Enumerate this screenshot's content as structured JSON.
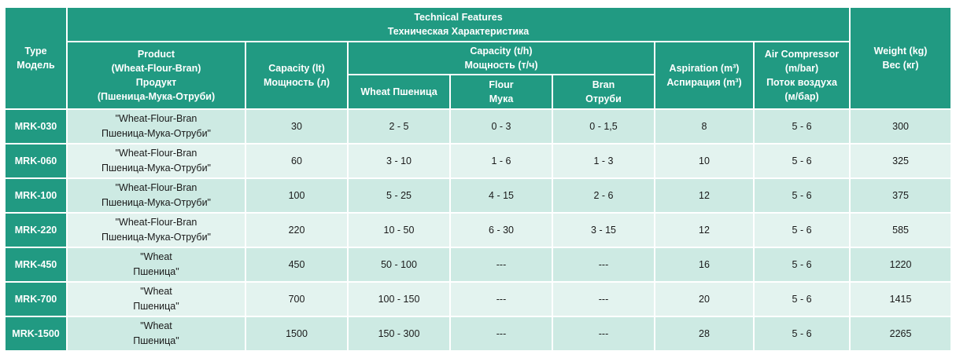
{
  "table": {
    "header": {
      "type": [
        "Type",
        "Модель"
      ],
      "technical_features": [
        "Technical Features",
        "Техническая Характеристика"
      ],
      "product": [
        "Product",
        "(Wheat-Flour-Bran)",
        "Продукт",
        "(Пшеница-Мука-Отруби)"
      ],
      "capacity_lt": [
        "Capacity (lt)",
        "Мощность (л)"
      ],
      "capacity_th": [
        "Capacity (t/h)",
        "Мощность (т/ч)"
      ],
      "wheat": [
        "Wheat Пшеница"
      ],
      "flour": [
        "Flour",
        "Мука"
      ],
      "bran": [
        "Bran",
        "Отруби"
      ],
      "aspiration": [
        "Aspiration (m³)",
        "Аспирация (m³)"
      ],
      "air": [
        "Air Compressor",
        "(m/bar)",
        "Поток воздуха",
        "(м/бар)"
      ],
      "weight": [
        "Weight (kg)",
        "Вес (кг)"
      ]
    },
    "rows": [
      {
        "type": "MRK-030",
        "product": [
          "\"Wheat-Flour-Bran",
          "Пшеница-Мука-Отруби\""
        ],
        "capacity": "30",
        "wheat": "2 - 5",
        "flour": "0 - 3",
        "bran": "0 - 1,5",
        "aspiration": "8",
        "air": "5 - 6",
        "weight": "300"
      },
      {
        "type": "MRK-060",
        "product": [
          "\"Wheat-Flour-Bran",
          "Пшеница-Мука-Отруби\""
        ],
        "capacity": "60",
        "wheat": "3 - 10",
        "flour": "1 - 6",
        "bran": "1 - 3",
        "aspiration": "10",
        "air": "5 - 6",
        "weight": "325"
      },
      {
        "type": "MRK-100",
        "product": [
          "\"Wheat-Flour-Bran",
          "Пшеница-Мука-Отруби\""
        ],
        "capacity": "100",
        "wheat": "5 - 25",
        "flour": "4 - 15",
        "bran": "2 - 6",
        "aspiration": "12",
        "air": "5 - 6",
        "weight": "375"
      },
      {
        "type": "MRK-220",
        "product": [
          "\"Wheat-Flour-Bran",
          "Пшеница-Мука-Отруби\""
        ],
        "capacity": "220",
        "wheat": "10 - 50",
        "flour": "6 - 30",
        "bran": "3 - 15",
        "aspiration": "12",
        "air": "5 - 6",
        "weight": "585"
      },
      {
        "type": "MRK-450",
        "product": [
          "\"Wheat",
          "Пшеница\""
        ],
        "capacity": "450",
        "wheat": "50 - 100",
        "flour": "---",
        "bran": "---",
        "aspiration": "16",
        "air": "5 - 6",
        "weight": "1220"
      },
      {
        "type": "MRK-700",
        "product": [
          "\"Wheat",
          "Пшеница\""
        ],
        "capacity": "700",
        "wheat": "100 - 150",
        "flour": "---",
        "bran": "---",
        "aspiration": "20",
        "air": "5 - 6",
        "weight": "1415"
      },
      {
        "type": "MRK-1500",
        "product": [
          "\"Wheat",
          "Пшеница\""
        ],
        "capacity": "1500",
        "wheat": "150 - 300",
        "flour": "---",
        "bran": "---",
        "aspiration": "28",
        "air": "5 - 6",
        "weight": "2265"
      }
    ]
  }
}
